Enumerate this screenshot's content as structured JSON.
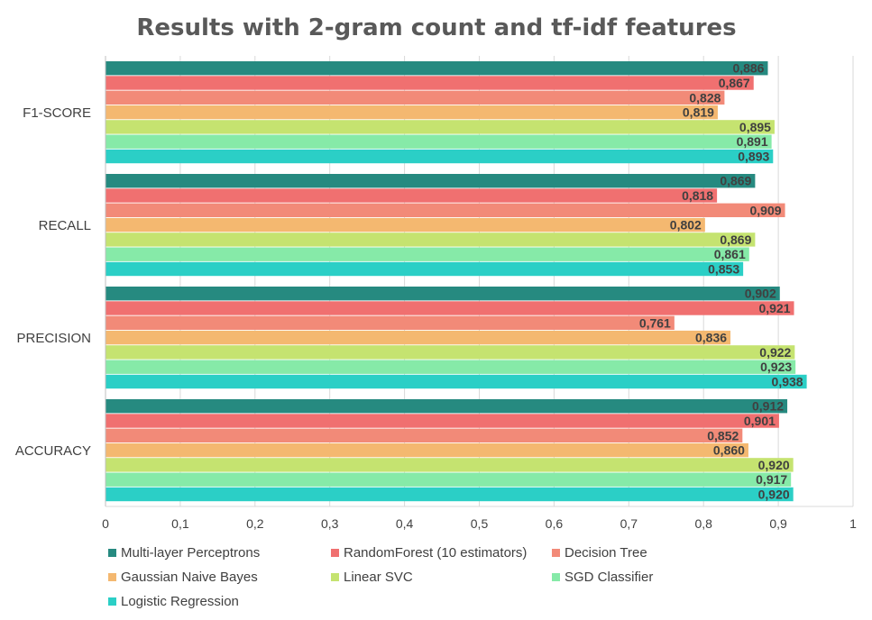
{
  "chart_data": {
    "type": "bar",
    "orientation": "horizontal",
    "title": "Results with 2-gram count and tf-idf features",
    "categories": [
      "F1-SCORE",
      "RECALL",
      "PRECISION",
      "ACCURACY"
    ],
    "xlim": [
      0,
      1
    ],
    "x_ticks": [
      "0",
      "0,1",
      "0,2",
      "0,3",
      "0,4",
      "0,5",
      "0,6",
      "0,7",
      "0,8",
      "0,9",
      "1"
    ],
    "grid": true,
    "legend_position": "bottom",
    "series": [
      {
        "name": "Multi-layer Perceptrons",
        "color": "#268a80",
        "values": [
          0.886,
          0.869,
          0.902,
          0.912
        ],
        "labels": [
          "0,886",
          "0,869",
          "0,902",
          "0,912"
        ]
      },
      {
        "name": "RandomForest (10 estimators)",
        "color": "#f07070",
        "values": [
          0.867,
          0.818,
          0.921,
          0.901
        ],
        "labels": [
          "0,867",
          "0,818",
          "0,921",
          "0,901"
        ]
      },
      {
        "name": "Decision Tree",
        "color": "#f28a78",
        "values": [
          0.828,
          0.909,
          0.761,
          0.852
        ],
        "labels": [
          "0,828",
          "0,909",
          "0,761",
          "0,852"
        ]
      },
      {
        "name": "Gaussian Naive Bayes",
        "color": "#f4b870",
        "values": [
          0.819,
          0.802,
          0.836,
          0.86
        ],
        "labels": [
          "0,819",
          "0,802",
          "0,836",
          "0,860"
        ]
      },
      {
        "name": "Linear SVC",
        "color": "#c5e370",
        "values": [
          0.895,
          0.869,
          0.922,
          0.92
        ],
        "labels": [
          "0,895",
          "0,869",
          "0,922",
          "0,920"
        ]
      },
      {
        "name": "SGD Classifier",
        "color": "#86eaa8",
        "values": [
          0.891,
          0.861,
          0.923,
          0.917
        ],
        "labels": [
          "0,891",
          "0,861",
          "0,923",
          "0,917"
        ]
      },
      {
        "name": "Logistic Regression",
        "color": "#2bcfc6",
        "values": [
          0.893,
          0.853,
          0.938,
          0.92
        ],
        "labels": [
          "0,893",
          "0,853",
          "0,938",
          "0,920"
        ]
      }
    ]
  }
}
